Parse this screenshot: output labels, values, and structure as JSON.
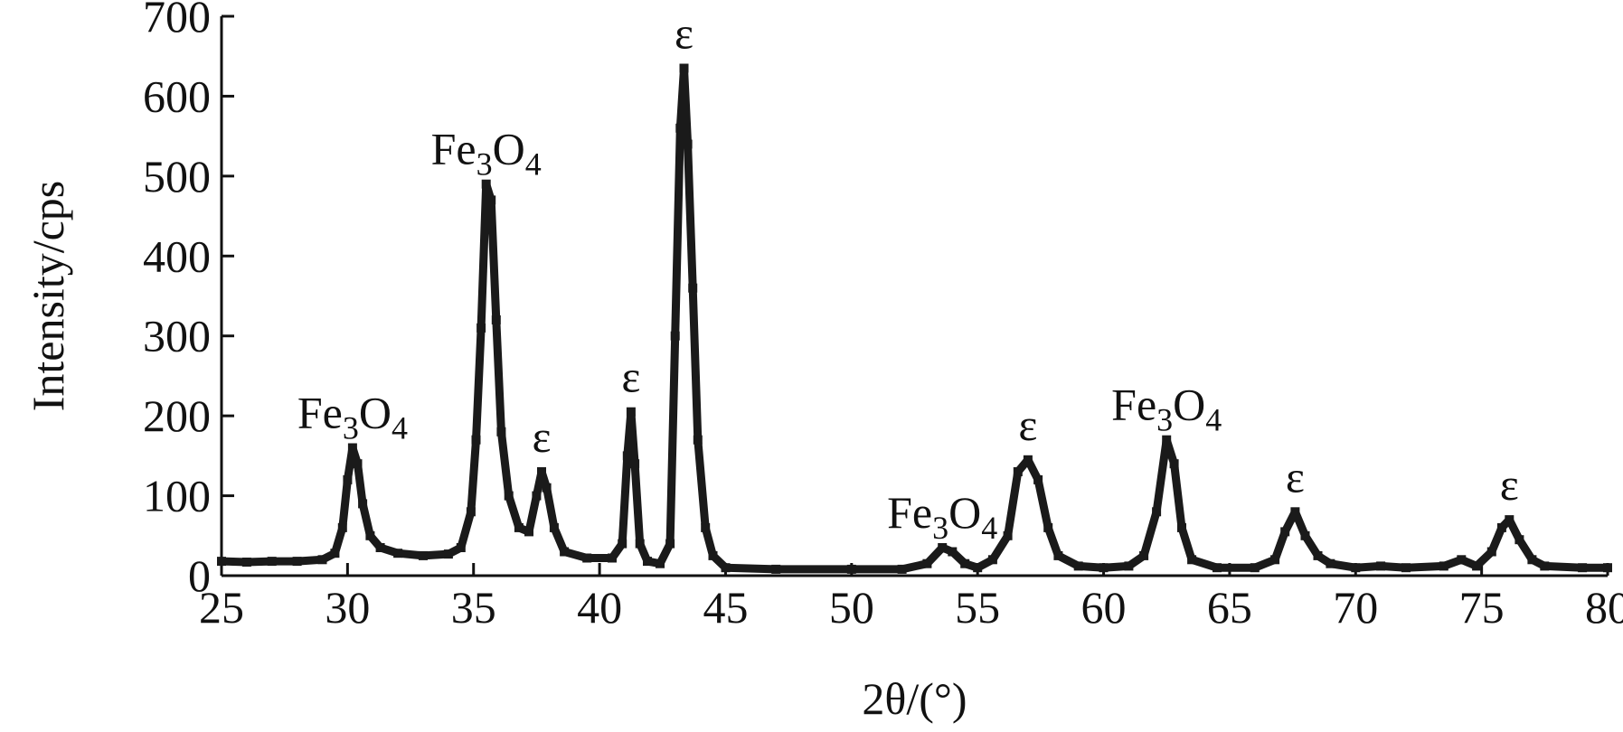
{
  "chart_data": {
    "type": "line",
    "xlabel": "2θ/(°)",
    "ylabel": "Intensity/cps",
    "xlim": [
      25,
      80
    ],
    "ylim": [
      0,
      700
    ],
    "x_ticks": [
      "25",
      "30",
      "35",
      "40",
      "45",
      "50",
      "55",
      "60",
      "65",
      "70",
      "75",
      "80"
    ],
    "y_ticks": [
      "0",
      "100",
      "200",
      "300",
      "400",
      "500",
      "600",
      "700"
    ],
    "grid": false,
    "series": [
      {
        "points": [
          [
            25.0,
            18
          ],
          [
            26.0,
            17
          ],
          [
            27.0,
            18
          ],
          [
            28.0,
            18
          ],
          [
            29.0,
            20
          ],
          [
            29.5,
            28
          ],
          [
            29.8,
            60
          ],
          [
            30.0,
            120
          ],
          [
            30.2,
            160
          ],
          [
            30.4,
            140
          ],
          [
            30.6,
            90
          ],
          [
            30.9,
            50
          ],
          [
            31.3,
            35
          ],
          [
            32.0,
            28
          ],
          [
            33.0,
            25
          ],
          [
            34.0,
            27
          ],
          [
            34.5,
            35
          ],
          [
            34.9,
            80
          ],
          [
            35.1,
            170
          ],
          [
            35.3,
            310
          ],
          [
            35.5,
            490
          ],
          [
            35.7,
            470
          ],
          [
            35.9,
            320
          ],
          [
            36.1,
            180
          ],
          [
            36.4,
            100
          ],
          [
            36.8,
            60
          ],
          [
            37.2,
            55
          ],
          [
            37.5,
            100
          ],
          [
            37.7,
            130
          ],
          [
            37.9,
            110
          ],
          [
            38.2,
            60
          ],
          [
            38.6,
            30
          ],
          [
            39.5,
            22
          ],
          [
            40.5,
            22
          ],
          [
            40.9,
            40
          ],
          [
            41.1,
            150
          ],
          [
            41.25,
            205
          ],
          [
            41.4,
            140
          ],
          [
            41.6,
            40
          ],
          [
            41.9,
            18
          ],
          [
            42.4,
            15
          ],
          [
            42.8,
            40
          ],
          [
            43.0,
            300
          ],
          [
            43.2,
            560
          ],
          [
            43.35,
            635
          ],
          [
            43.5,
            540
          ],
          [
            43.7,
            360
          ],
          [
            43.9,
            170
          ],
          [
            44.2,
            60
          ],
          [
            44.5,
            25
          ],
          [
            45.0,
            10
          ],
          [
            47.0,
            8
          ],
          [
            50.0,
            8
          ],
          [
            52.0,
            8
          ],
          [
            53.0,
            15
          ],
          [
            53.6,
            35
          ],
          [
            54.0,
            30
          ],
          [
            54.5,
            15
          ],
          [
            55.0,
            10
          ],
          [
            55.6,
            20
          ],
          [
            56.2,
            50
          ],
          [
            56.6,
            130
          ],
          [
            57.0,
            145
          ],
          [
            57.4,
            120
          ],
          [
            57.8,
            60
          ],
          [
            58.2,
            25
          ],
          [
            59.0,
            12
          ],
          [
            60.0,
            10
          ],
          [
            61.0,
            12
          ],
          [
            61.6,
            25
          ],
          [
            62.1,
            80
          ],
          [
            62.5,
            170
          ],
          [
            62.8,
            140
          ],
          [
            63.1,
            60
          ],
          [
            63.5,
            20
          ],
          [
            64.5,
            10
          ],
          [
            66.0,
            10
          ],
          [
            66.8,
            20
          ],
          [
            67.2,
            55
          ],
          [
            67.6,
            80
          ],
          [
            68.0,
            50
          ],
          [
            68.5,
            25
          ],
          [
            69.0,
            15
          ],
          [
            70.0,
            10
          ],
          [
            71.0,
            12
          ],
          [
            72.0,
            10
          ],
          [
            73.5,
            12
          ],
          [
            74.2,
            20
          ],
          [
            74.8,
            12
          ],
          [
            75.4,
            30
          ],
          [
            75.8,
            60
          ],
          [
            76.1,
            70
          ],
          [
            76.5,
            45
          ],
          [
            77.0,
            20
          ],
          [
            77.5,
            12
          ],
          [
            79.0,
            10
          ],
          [
            80.0,
            10
          ]
        ]
      }
    ],
    "annotations": [
      {
        "text": "Fe",
        "sub": "3",
        "text2": "O",
        "sub2": "4",
        "x": 30.2,
        "y": 160
      },
      {
        "text": "Fe",
        "sub": "3",
        "text2": "O",
        "sub2": "4",
        "x": 35.5,
        "y": 490
      },
      {
        "text": "ε",
        "x": 37.7,
        "y": 130
      },
      {
        "text": "ε",
        "x": 41.25,
        "y": 205
      },
      {
        "text": "ε",
        "x": 43.35,
        "y": 635
      },
      {
        "text": "Fe",
        "sub": "3",
        "text2": "O",
        "sub2": "4",
        "x": 53.6,
        "y": 35
      },
      {
        "text": "ε",
        "x": 57.0,
        "y": 145
      },
      {
        "text": "Fe",
        "sub": "3",
        "text2": "O",
        "sub2": "4",
        "x": 62.5,
        "y": 170
      },
      {
        "text": "ε",
        "x": 67.6,
        "y": 80
      },
      {
        "text": "ε",
        "x": 76.1,
        "y": 70
      }
    ]
  }
}
